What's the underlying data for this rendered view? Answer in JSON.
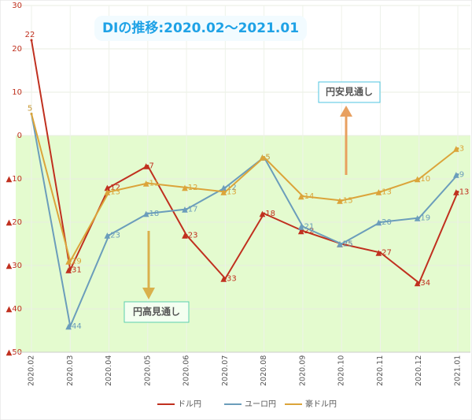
{
  "chart_data": {
    "type": "line",
    "title": "DIの推移:2020.02～2021.01",
    "annotations": [
      "円安見通し",
      "円高見通し"
    ],
    "categories": [
      "2020.02",
      "2020.03",
      "2020.04",
      "2020.05",
      "2020.06",
      "2020.07",
      "2020.08",
      "2020.09",
      "2020.10",
      "2020.11",
      "2020.12",
      "2021.01"
    ],
    "series": [
      {
        "name": "ドル円",
        "color": "#c0301f",
        "values": [
          22,
          -31,
          -12,
          -7,
          -23,
          -33,
          -18,
          -22,
          -25,
          -27,
          -34,
          -13
        ],
        "value_labels": [
          "22",
          "▲31",
          "▲12",
          "▲7",
          "▲23",
          "▲33",
          "▲18",
          "▲22",
          "▲25",
          "▲27",
          "▲34",
          "▲13"
        ]
      },
      {
        "name": "ユーロ円",
        "color": "#6b9dbb",
        "values": [
          5,
          -44,
          -23,
          -18,
          -17,
          -12,
          -5,
          -21,
          -25,
          -20,
          -19,
          -9
        ],
        "value_labels": [
          "5",
          "▲44",
          "▲23",
          "▲18",
          "▲17",
          "▲12",
          "▲5",
          "▲21",
          "▲25",
          "▲20",
          "▲19",
          "▲9"
        ]
      },
      {
        "name": "豪ドル円",
        "color": "#dba43a",
        "values": [
          5,
          -29,
          -13,
          -11,
          -12,
          -13,
          -5,
          -14,
          -15,
          -13,
          -10,
          -3
        ],
        "value_labels": [
          "5",
          "▲29",
          "▲13",
          "▲11",
          "▲12",
          "▲13",
          "▲5",
          "▲14",
          "▲15",
          "▲13",
          "▲10",
          "▲3"
        ]
      }
    ],
    "ylim": [
      -50,
      30
    ],
    "yticks": [
      {
        "value": -50,
        "label": "▲50"
      },
      {
        "value": -40,
        "label": "▲40"
      },
      {
        "value": -30,
        "label": "▲30"
      },
      {
        "value": -20,
        "label": "▲20"
      },
      {
        "value": -10,
        "label": "▲10"
      },
      0,
      10,
      20,
      30
    ],
    "grid": true,
    "negative_shade_color": "#e4fbcf",
    "legend": "bottom"
  }
}
